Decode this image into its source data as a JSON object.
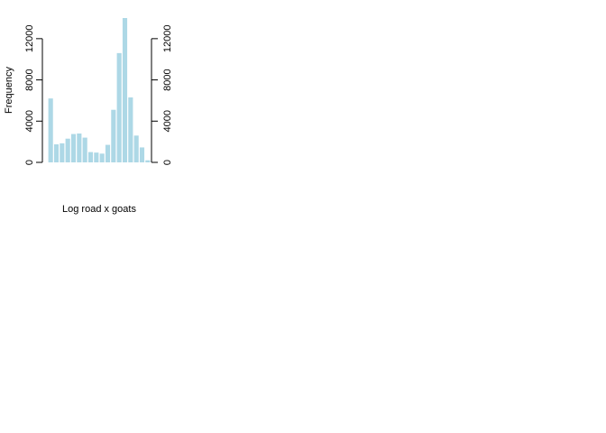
{
  "chart_data": {
    "type": "bar",
    "title": "",
    "xlabel": "Log road x goats",
    "ylabel": "Frequency",
    "ylim": [
      0,
      14000
    ],
    "yticks": [
      0,
      4000,
      8000,
      12000
    ],
    "ytick_labels": [
      "0",
      "4000",
      "8000",
      "12000"
    ],
    "axes": [
      "left",
      "right"
    ],
    "grid": false,
    "bar_color": "#add8e6",
    "values": [
      6200,
      1750,
      1850,
      2300,
      2750,
      2800,
      2400,
      1000,
      950,
      850,
      1700,
      5100,
      10600,
      14000,
      6300,
      2600,
      1450,
      200
    ]
  }
}
